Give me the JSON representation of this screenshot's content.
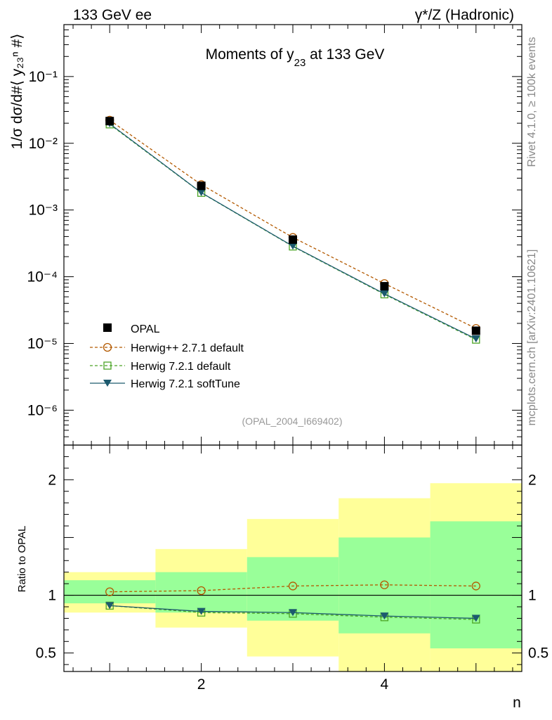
{
  "header": {
    "left": "133 GeV ee",
    "right": "γ*/Z (Hadronic)",
    "plot_title_prefix": "Moments of y",
    "plot_title_sub": "23",
    "plot_title_suffix": " at 133 GeV"
  },
  "side_labels": {
    "rivet": "Rivet 4.1.0, ≥ 100k events",
    "mcplots": "mcplots.cern.ch [arXiv:2401.10621]"
  },
  "analysis_id": "(OPAL_2004_I669402)",
  "axes": {
    "y_main_label": "1/σ  dσ/d#⟨ y₂₃ⁿ #⟩",
    "y_ratio_label": "Ratio to OPAL",
    "x_label": "n"
  },
  "colors": {
    "herwigpp": "#b35900",
    "herwig721": "#4ca526",
    "softtune": "#1c5a6e",
    "band_yellow": "#ffff99",
    "band_green": "#99ff99"
  },
  "chart_data": {
    "type": "line",
    "x": [
      1,
      2,
      3,
      4,
      5
    ],
    "xlim": [
      0.5,
      5.5
    ],
    "ylim_main": [
      3e-07,
      0.6
    ],
    "ylim_ratio": [
      0.34,
      2.3
    ],
    "main_y_ticks": [
      {
        "value": 0.1,
        "label": "10⁻¹"
      },
      {
        "value": 0.01,
        "label": "10⁻²"
      },
      {
        "value": 0.001,
        "label": "10⁻³"
      },
      {
        "value": 0.0001,
        "label": "10⁻⁴"
      },
      {
        "value": 1e-05,
        "label": "10⁻⁵"
      },
      {
        "value": 1e-06,
        "label": "10⁻⁶"
      }
    ],
    "ratio_y_ticks": [
      {
        "value": 2,
        "label": "2"
      },
      {
        "value": 1,
        "label": "1"
      },
      {
        "value": 0.5,
        "label": "0.5"
      }
    ],
    "x_ticks": [
      {
        "value": 2,
        "label": "2"
      },
      {
        "value": 4,
        "label": "4"
      }
    ],
    "series": [
      {
        "name": "OPAL",
        "key": "opal",
        "values": [
          0.0215,
          0.0023,
          0.00036,
          7.2e-05,
          1.55e-05
        ]
      },
      {
        "name": "Herwig++ 2.7.1 default",
        "key": "herwigpp",
        "values": [
          0.0222,
          0.0024,
          0.000388,
          7.9e-05,
          1.68e-05
        ]
      },
      {
        "name": "Herwig 7.2.1 default",
        "key": "herwig721",
        "values": [
          0.0192,
          0.00181,
          0.000284,
          5.45e-05,
          1.14e-05
        ]
      },
      {
        "name": "Herwig 7.2.1 softTune",
        "key": "softtune",
        "values": [
          0.0196,
          0.00182,
          0.000287,
          5.55e-05,
          1.17e-05
        ]
      }
    ],
    "ratio_series": [
      {
        "key": "herwigpp",
        "values": [
          1.03,
          1.04,
          1.08,
          1.09,
          1.08
        ]
      },
      {
        "key": "herwig721",
        "values": [
          0.91,
          0.85,
          0.84,
          0.81,
          0.79
        ]
      },
      {
        "key": "softtune",
        "values": [
          0.91,
          0.86,
          0.85,
          0.82,
          0.8
        ]
      }
    ],
    "bands": [
      {
        "x0": 0.5,
        "x1": 1.5,
        "yellow": [
          0.85,
          1.2
        ],
        "green": [
          0.93,
          1.13
        ]
      },
      {
        "x0": 1.5,
        "x1": 2.5,
        "yellow": [
          0.72,
          1.4
        ],
        "green": [
          0.85,
          1.2
        ]
      },
      {
        "x0": 2.5,
        "x1": 3.5,
        "yellow": [
          0.47,
          1.66
        ],
        "green": [
          0.78,
          1.33
        ]
      },
      {
        "x0": 3.5,
        "x1": 4.5,
        "yellow": [
          0.3,
          1.84
        ],
        "green": [
          0.67,
          1.5
        ]
      },
      {
        "x0": 4.5,
        "x1": 5.5,
        "yellow": [
          0.3,
          1.97
        ],
        "green": [
          0.54,
          1.64
        ]
      }
    ]
  }
}
